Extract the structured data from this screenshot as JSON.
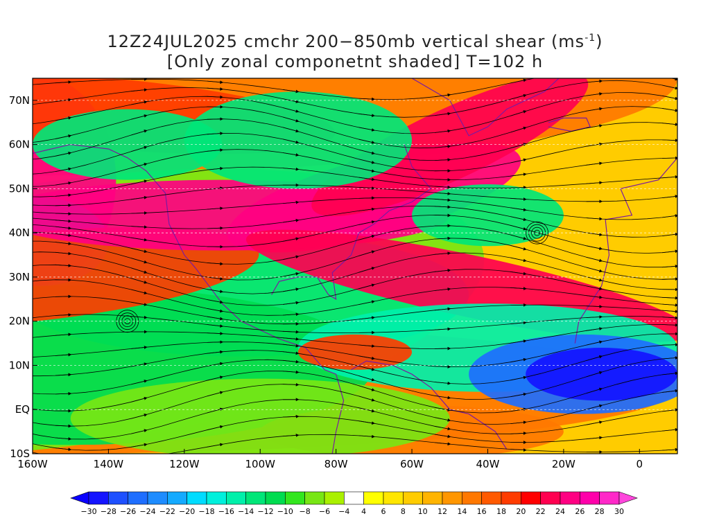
{
  "title": {
    "line1_main": "12Z24JUL2025 cmchr 200−850mb vertical shear (ms",
    "line1_sup": "-1",
    "line1_end": ")",
    "line2": "[Only zonal componetnt shaded] T=102 h"
  },
  "map": {
    "region": {
      "lon_min": -160,
      "lon_max": 10,
      "lat_min": -10,
      "lat_max": 75
    },
    "lat_ticks": [
      {
        "value": 70,
        "label": "70N"
      },
      {
        "value": 60,
        "label": "60N"
      },
      {
        "value": 50,
        "label": "50N"
      },
      {
        "value": 40,
        "label": "40N"
      },
      {
        "value": 30,
        "label": "30N"
      },
      {
        "value": 20,
        "label": "20N"
      },
      {
        "value": 10,
        "label": "10N"
      },
      {
        "value": 0,
        "label": "EQ"
      },
      {
        "value": -10,
        "label": "10S"
      }
    ],
    "lon_ticks": [
      {
        "value": -160,
        "label": "160W"
      },
      {
        "value": -140,
        "label": "140W"
      },
      {
        "value": -120,
        "label": "120W"
      },
      {
        "value": -100,
        "label": "100W"
      },
      {
        "value": -80,
        "label": "80W"
      },
      {
        "value": -60,
        "label": "60W"
      },
      {
        "value": -40,
        "label": "40W"
      },
      {
        "value": -20,
        "label": "20W"
      },
      {
        "value": 0,
        "label": "0"
      }
    ],
    "shading": "zonal component of 200-850mb vertical shear",
    "overlay": "shear streamlines with arrows"
  },
  "colorbar": {
    "labels": [
      "-30",
      "-28",
      "-26",
      "-24",
      "-22",
      "-20",
      "-18",
      "-16",
      "-14",
      "-12",
      "-10",
      "-8",
      "-6",
      "-4",
      "4",
      "6",
      "8",
      "10",
      "12",
      "14",
      "16",
      "18",
      "20",
      "22",
      "24",
      "26",
      "28",
      "30"
    ],
    "colors": [
      "#1414ff",
      "#1e50ff",
      "#1e6eff",
      "#1e8cff",
      "#14aaff",
      "#00dcff",
      "#00f0dc",
      "#00f0aa",
      "#00e678",
      "#00dc50",
      "#32e61e",
      "#78e614",
      "#aaf000",
      "#ffffff",
      "#ffff00",
      "#ffe600",
      "#ffcc00",
      "#ffb400",
      "#ff9600",
      "#ff7800",
      "#ff5a00",
      "#ff3c00",
      "#ff0000",
      "#ff0050",
      "#ff0082",
      "#ff00aa",
      "#ff28c8"
    ],
    "under_color": "#0a00ff",
    "over_color": "#ff46dc"
  }
}
